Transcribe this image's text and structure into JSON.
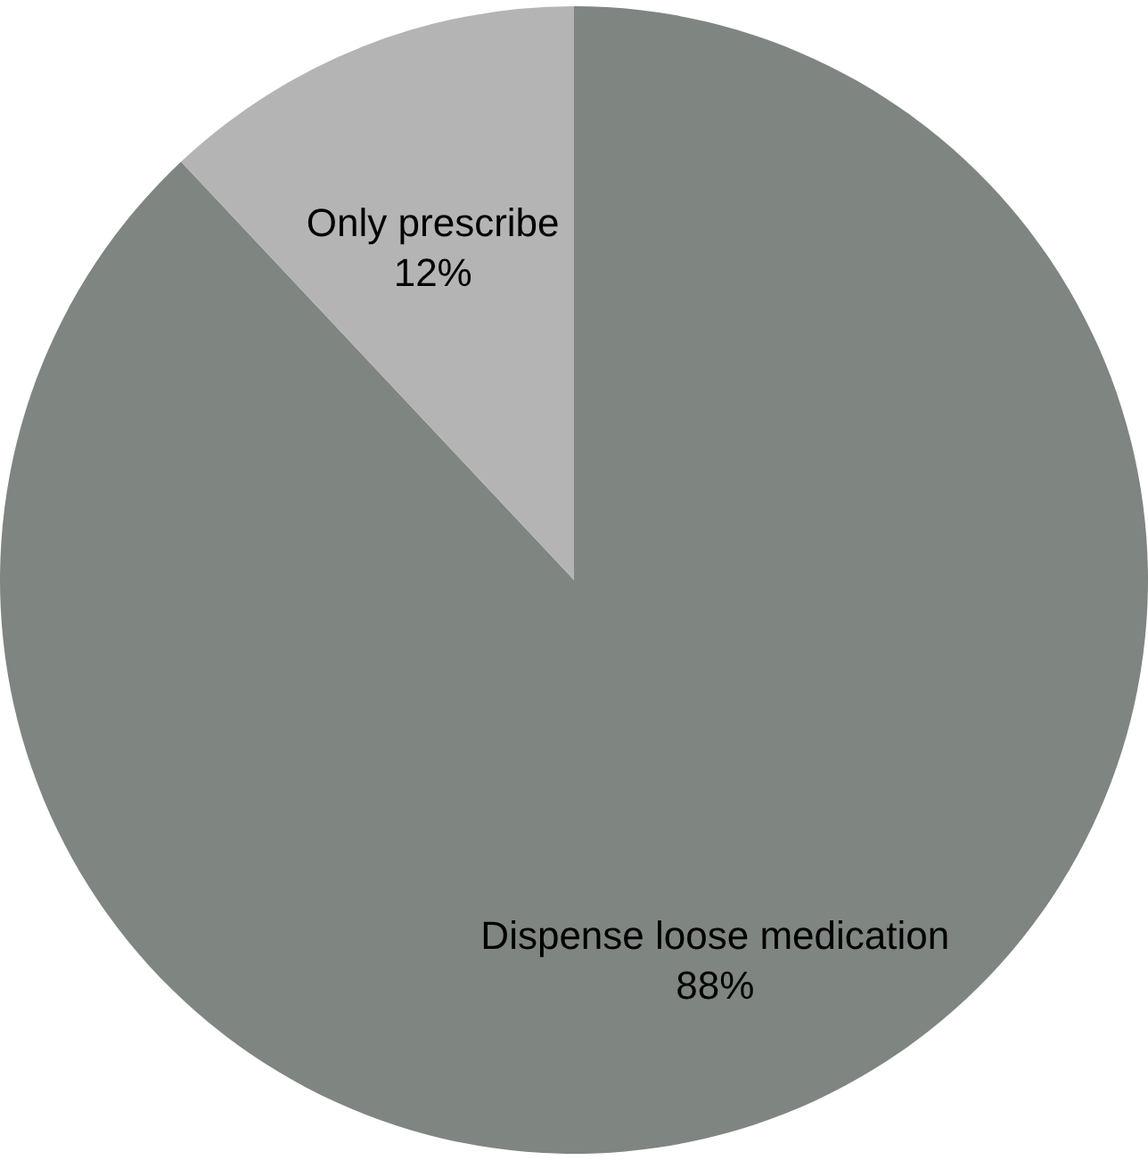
{
  "chart_data": {
    "type": "pie",
    "categories": [
      "Dispense loose medication",
      "Only prescribe"
    ],
    "values": [
      88,
      12
    ],
    "value_labels": [
      "88%",
      "12%"
    ],
    "colors": [
      "#7f8581",
      "#b4b4b4"
    ]
  }
}
